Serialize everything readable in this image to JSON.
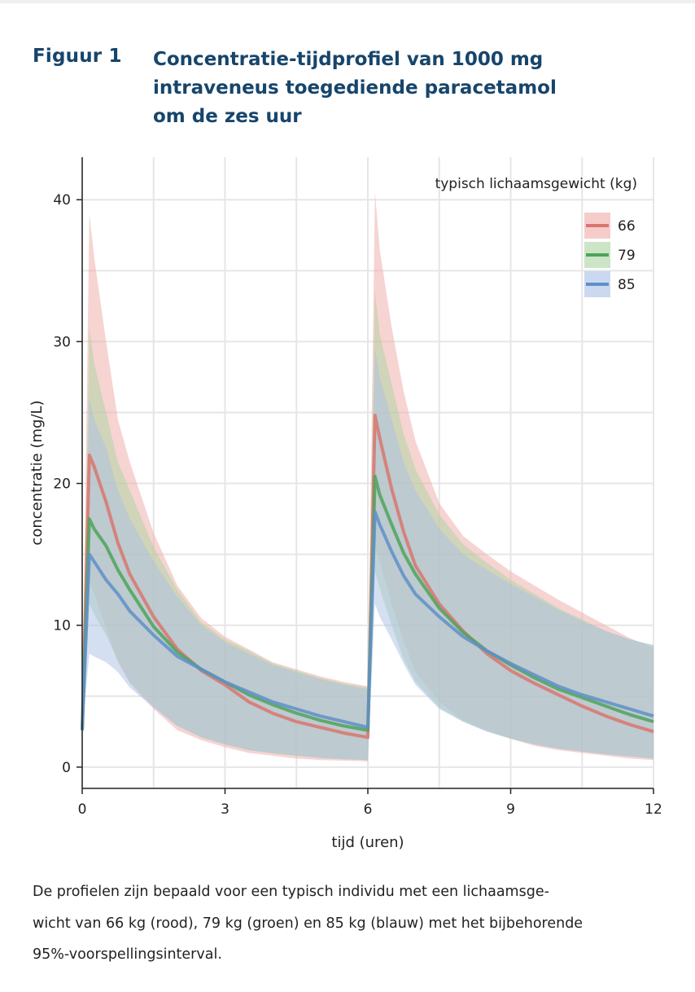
{
  "figure": {
    "label": "Figuur 1",
    "title_lines": [
      "Concentratie-tijdprofiel van 1000 mg",
      "intraveneus toegediende paracetamol",
      "om de zes uur"
    ],
    "title_color": "#17456b"
  },
  "caption_lines": [
    "De profielen zijn bepaald voor een typisch individu met een lichaamsge-",
    "wicht van 66 kg (rood), 79 kg (groen) en 85 kg (blauw) met het bijbehorende",
    "95%-voorspellingsinterval."
  ],
  "chart_data": {
    "type": "line",
    "xlabel": "tijd (uren)",
    "ylabel": "concentratie (mg/L)",
    "xlim": [
      0,
      12
    ],
    "ylim": [
      -1.5,
      43
    ],
    "xticks": [
      0,
      3,
      6,
      9,
      12
    ],
    "yticks": [
      0,
      10,
      20,
      30,
      40
    ],
    "grid": true,
    "legend": {
      "title": "typisch lichaamsgewicht (kg)",
      "position": "top-right"
    },
    "series": [
      {
        "name": "66",
        "color": "#d9756f",
        "band_color": "#eeaaa6",
        "x": [
          0,
          0.15,
          0.25,
          0.5,
          0.75,
          1,
          1.5,
          2,
          2.5,
          3,
          3.5,
          4,
          4.5,
          5,
          5.5,
          6,
          6.15,
          6.25,
          6.5,
          6.75,
          7,
          7.5,
          8,
          8.5,
          9,
          9.5,
          10,
          10.5,
          11,
          11.5,
          12
        ],
        "y": [
          2.6,
          22,
          21.2,
          18.7,
          15.8,
          13.6,
          10.6,
          8.3,
          6.8,
          5.8,
          4.6,
          3.8,
          3.2,
          2.8,
          2.4,
          2.1,
          24.8,
          23.2,
          19.6,
          16.6,
          14.2,
          11.5,
          9.6,
          8.0,
          6.8,
          5.9,
          5.1,
          4.3,
          3.6,
          3.0,
          2.5
        ],
        "lower": [
          2.6,
          13,
          12.3,
          9.8,
          7.4,
          5.9,
          4.1,
          2.6,
          1.9,
          1.4,
          1.0,
          0.8,
          0.6,
          0.5,
          0.45,
          0.4,
          15.5,
          14.5,
          11.5,
          8.9,
          6.7,
          4.6,
          3.3,
          2.6,
          2.0,
          1.5,
          1.2,
          1.0,
          0.8,
          0.6,
          0.5
        ],
        "upper": [
          2.6,
          39,
          36,
          30,
          24.5,
          21.5,
          16.5,
          12.8,
          10.5,
          9.2,
          8.3,
          7.4,
          6.9,
          6.4,
          6.0,
          5.7,
          40.5,
          36.5,
          31,
          26.5,
          23,
          18.6,
          16.3,
          15.0,
          13.8,
          12.8,
          11.8,
          10.9,
          10.0,
          9.1,
          8.4
        ]
      },
      {
        "name": "79",
        "color": "#4fa35a",
        "band_color": "#a9d3a0",
        "x": [
          0,
          0.15,
          0.25,
          0.5,
          0.75,
          1,
          1.5,
          2,
          2.5,
          3,
          3.5,
          4,
          4.5,
          5,
          5.5,
          6,
          6.15,
          6.25,
          6.5,
          6.75,
          7,
          7.5,
          8,
          8.5,
          9,
          9.5,
          10,
          10.5,
          11,
          11.5,
          12
        ],
        "y": [
          2.6,
          17.5,
          16.8,
          15.6,
          13.9,
          12.5,
          9.9,
          8.1,
          6.9,
          6.0,
          5.1,
          4.4,
          3.8,
          3.3,
          2.9,
          2.6,
          20.5,
          19.2,
          17.1,
          15.1,
          13.6,
          11.2,
          9.5,
          8.2,
          7.2,
          6.3,
          5.5,
          4.9,
          4.3,
          3.7,
          3.2
        ],
        "lower": [
          2.6,
          11.5,
          10.8,
          9.3,
          7.5,
          6.0,
          4.3,
          2.9,
          2.1,
          1.6,
          1.2,
          0.95,
          0.8,
          0.65,
          0.55,
          0.5,
          13.8,
          12.6,
          10.0,
          7.6,
          6.0,
          4.2,
          3.2,
          2.5,
          2.0,
          1.6,
          1.3,
          1.1,
          0.9,
          0.75,
          0.6
        ],
        "upper": [
          2.6,
          31,
          28.5,
          25,
          21.5,
          19.5,
          15.5,
          12.5,
          10.2,
          9.0,
          8.2,
          7.3,
          6.8,
          6.3,
          5.9,
          5.6,
          33.5,
          30.5,
          27,
          23.5,
          21,
          17.8,
          15.7,
          14.4,
          13.2,
          12.2,
          11.2,
          10.4,
          9.6,
          9.0,
          8.6
        ]
      },
      {
        "name": "85",
        "color": "#5f8fc9",
        "band_color": "#a9bfe6",
        "x": [
          0,
          0.15,
          0.25,
          0.5,
          0.75,
          1,
          1.5,
          2,
          2.5,
          3,
          3.5,
          4,
          4.5,
          5,
          5.5,
          6,
          6.15,
          6.25,
          6.5,
          6.75,
          7,
          7.5,
          8,
          8.5,
          9,
          9.5,
          10,
          10.5,
          11,
          11.5,
          12
        ],
        "y": [
          2.6,
          15.0,
          14.5,
          13.2,
          12.2,
          11.0,
          9.3,
          7.8,
          6.9,
          6.0,
          5.3,
          4.6,
          4.1,
          3.6,
          3.2,
          2.8,
          18.0,
          17.1,
          15.2,
          13.5,
          12.2,
          10.6,
          9.2,
          8.2,
          7.3,
          6.5,
          5.7,
          5.1,
          4.6,
          4.1,
          3.6
        ],
        "lower": [
          2.6,
          8.0,
          7.8,
          7.4,
          6.7,
          5.6,
          4.2,
          2.9,
          2.1,
          1.6,
          1.2,
          1.0,
          0.8,
          0.65,
          0.55,
          0.5,
          11.5,
          10.6,
          9.0,
          7.3,
          5.8,
          4.1,
          3.2,
          2.5,
          2.0,
          1.6,
          1.3,
          1.1,
          0.9,
          0.75,
          0.6
        ],
        "upper": [
          2.6,
          26,
          24.5,
          22.5,
          19.5,
          17.5,
          14.5,
          12.0,
          10.0,
          8.8,
          8.0,
          7.2,
          6.7,
          6.2,
          5.8,
          5.5,
          29.5,
          27.5,
          24.5,
          21.5,
          19.5,
          16.8,
          15.0,
          13.9,
          12.9,
          12.0,
          11.1,
          10.3,
          9.6,
          9.0,
          8.6
        ]
      }
    ]
  }
}
